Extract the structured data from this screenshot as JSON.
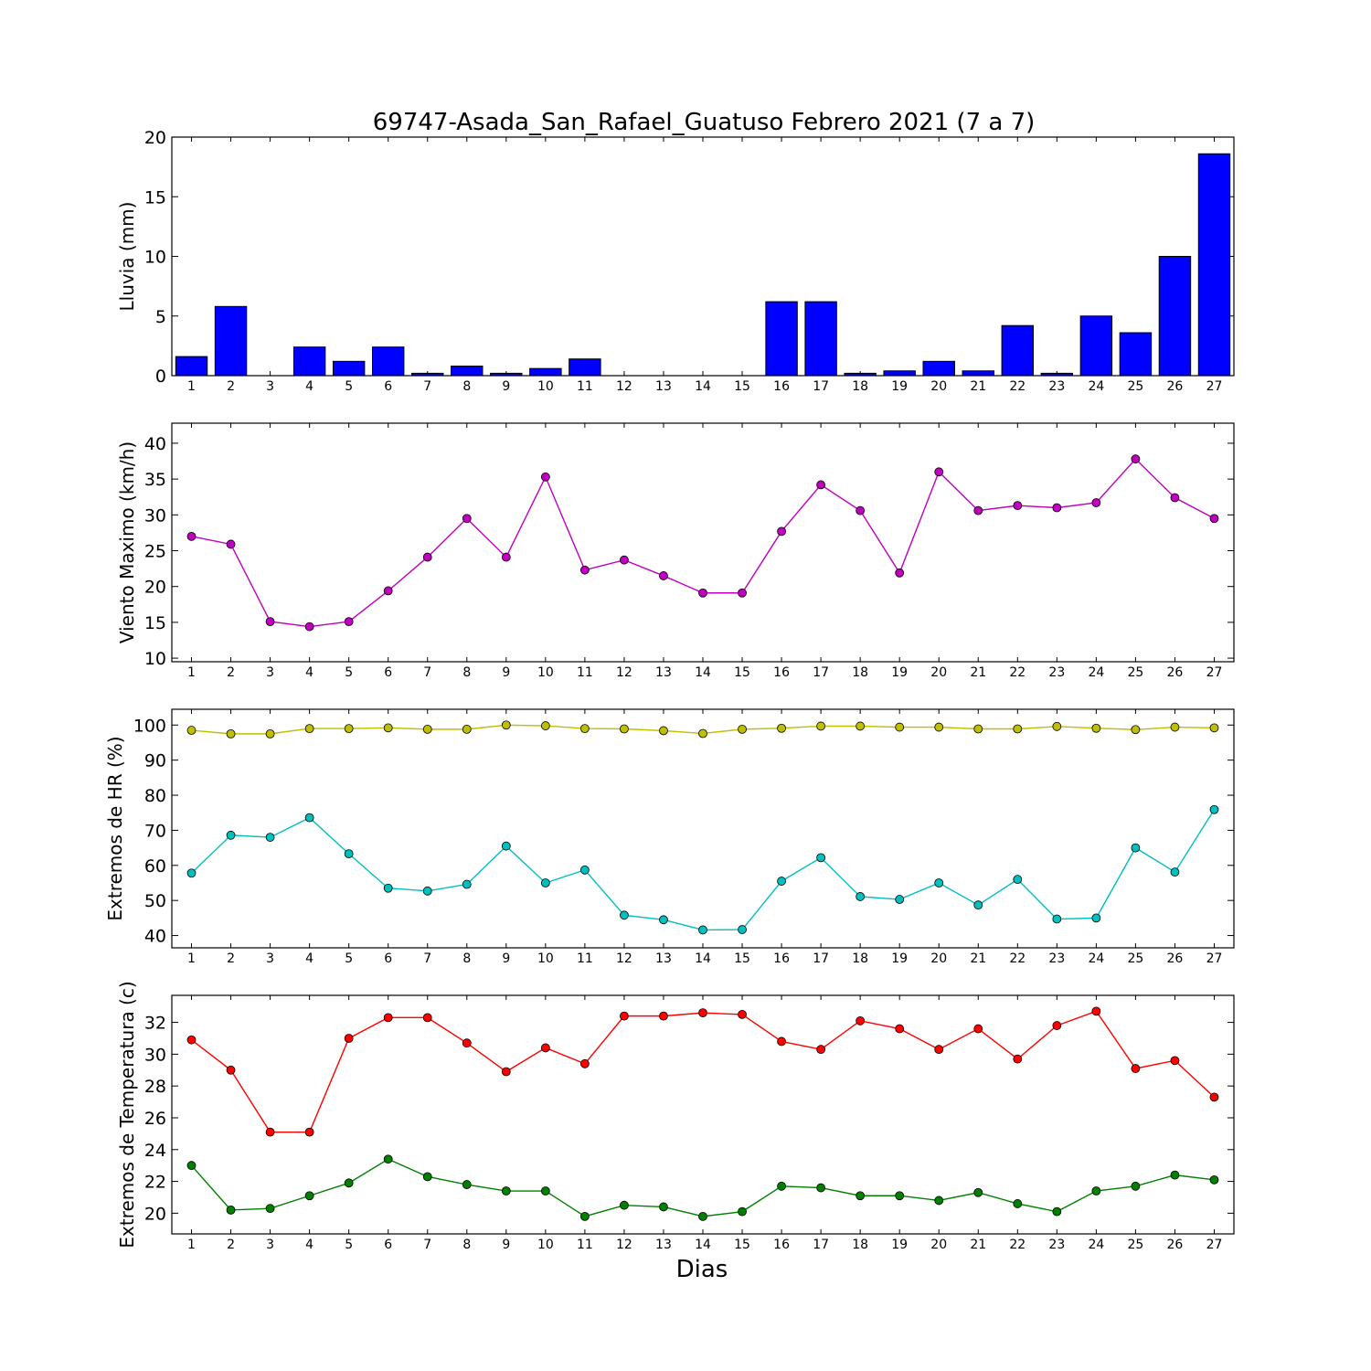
{
  "title": "69747-Asada_San_Rafael_Guatuso Febrero 2021  (7 a 7)",
  "xlabel": "Dias",
  "chart_data": [
    {
      "type": "bar",
      "ylabel": "Lluvia (mm)",
      "ylim": [
        0,
        20
      ],
      "yticks": [
        0,
        5,
        10,
        15,
        20
      ],
      "categories": [
        1,
        2,
        3,
        4,
        5,
        6,
        7,
        8,
        9,
        10,
        11,
        12,
        13,
        14,
        15,
        16,
        17,
        18,
        19,
        20,
        21,
        22,
        23,
        24,
        25,
        26,
        27
      ],
      "values": [
        1.6,
        5.8,
        0,
        2.4,
        1.2,
        2.4,
        0.2,
        0.8,
        0.2,
        0.6,
        1.4,
        0,
        0,
        0,
        0,
        6.2,
        6.2,
        0.2,
        0.4,
        1.2,
        0.4,
        4.2,
        0.2,
        5.0,
        3.6,
        10.0,
        18.6
      ],
      "color": "#0000ff"
    },
    {
      "type": "line",
      "ylabel": "Viento Maximo (km/h)",
      "ylim": [
        9.5,
        42.8
      ],
      "yticks": [
        10,
        15,
        20,
        25,
        30,
        35,
        40
      ],
      "x": [
        1,
        2,
        3,
        4,
        5,
        6,
        7,
        8,
        9,
        10,
        11,
        12,
        13,
        14,
        15,
        16,
        17,
        18,
        19,
        20,
        21,
        22,
        23,
        24,
        25,
        26,
        27
      ],
      "series": [
        {
          "color": "#bf00bf",
          "values": [
            27.0,
            25.9,
            15.1,
            14.4,
            15.1,
            19.4,
            24.1,
            29.5,
            24.1,
            35.3,
            22.3,
            23.7,
            21.5,
            19.1,
            19.1,
            27.7,
            34.2,
            30.6,
            21.9,
            36.0,
            30.6,
            31.3,
            31.0,
            31.7,
            37.8,
            32.4,
            29.5
          ]
        }
      ]
    },
    {
      "type": "line",
      "ylabel": "Extremos de HR (%)",
      "ylim": [
        36.5,
        104.5
      ],
      "yticks": [
        40,
        50,
        60,
        70,
        80,
        90,
        100
      ],
      "x": [
        1,
        2,
        3,
        4,
        5,
        6,
        7,
        8,
        9,
        10,
        11,
        12,
        13,
        14,
        15,
        16,
        17,
        18,
        19,
        20,
        21,
        22,
        23,
        24,
        25,
        26,
        27
      ],
      "series": [
        {
          "color": "#bfbf00",
          "values": [
            98.5,
            97.5,
            97.5,
            99.0,
            99.0,
            99.2,
            98.8,
            98.8,
            100.0,
            99.8,
            99.0,
            98.9,
            98.4,
            97.6,
            98.8,
            99.1,
            99.7,
            99.7,
            99.4,
            99.4,
            98.9,
            98.9,
            99.6,
            99.1,
            98.7,
            99.4,
            99.2
          ]
        },
        {
          "color": "#00bfbf",
          "values": [
            57.8,
            68.6,
            68.0,
            73.6,
            63.3,
            53.5,
            52.7,
            54.6,
            65.5,
            55.0,
            58.7,
            45.8,
            44.5,
            41.6,
            41.7,
            55.5,
            62.2,
            51.1,
            50.3,
            55.0,
            48.7,
            56.0,
            44.7,
            45.0,
            65.0,
            58.1,
            75.9
          ]
        }
      ]
    },
    {
      "type": "line",
      "ylabel": "Extremos de Temperatura (c)",
      "ylim": [
        18.7,
        33.7
      ],
      "yticks": [
        20,
        22,
        24,
        26,
        28,
        30,
        32
      ],
      "x": [
        1,
        2,
        3,
        4,
        5,
        6,
        7,
        8,
        9,
        10,
        11,
        12,
        13,
        14,
        15,
        16,
        17,
        18,
        19,
        20,
        21,
        22,
        23,
        24,
        25,
        26,
        27
      ],
      "series": [
        {
          "color": "#ff0000",
          "values": [
            30.9,
            29.0,
            25.1,
            25.1,
            31.0,
            32.3,
            32.3,
            30.7,
            28.9,
            30.4,
            29.4,
            32.4,
            32.4,
            32.6,
            32.5,
            30.8,
            30.3,
            32.1,
            31.6,
            30.3,
            31.6,
            29.7,
            31.8,
            32.7,
            29.1,
            29.6,
            27.3
          ]
        },
        {
          "color": "#008000",
          "values": [
            23.0,
            20.2,
            20.3,
            21.1,
            21.9,
            23.4,
            22.3,
            21.8,
            21.4,
            21.4,
            19.8,
            20.5,
            20.4,
            19.8,
            20.1,
            21.7,
            21.6,
            21.1,
            21.1,
            20.8,
            21.3,
            20.6,
            20.1,
            21.4,
            21.7,
            22.4,
            22.1
          ]
        }
      ]
    }
  ]
}
